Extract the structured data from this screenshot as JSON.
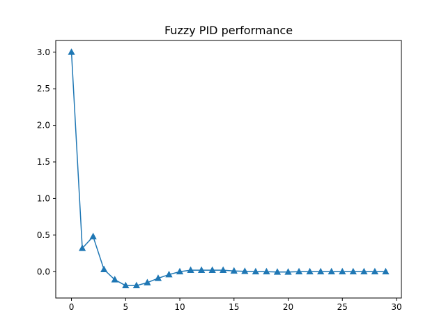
{
  "chart_data": {
    "type": "line",
    "title": "Fuzzy PID performance",
    "xlabel": "",
    "ylabel": "",
    "xlim": [
      -1.45,
      30.45
    ],
    "ylim": [
      -0.36,
      3.16
    ],
    "xticks": [
      0,
      5,
      10,
      15,
      20,
      25,
      30
    ],
    "yticks": [
      0.0,
      0.5,
      1.0,
      1.5,
      2.0,
      2.5,
      3.0
    ],
    "xtick_labels": [
      "0",
      "5",
      "10",
      "15",
      "20",
      "25",
      "30"
    ],
    "ytick_labels": [
      "0.0",
      "0.5",
      "1.0",
      "1.5",
      "2.0",
      "2.5",
      "3.0"
    ],
    "grid": false,
    "legend": "none",
    "series": [
      {
        "color": "#1f77b4",
        "marker": "triangle-up",
        "x": [
          0,
          1,
          2,
          3,
          4,
          5,
          6,
          7,
          8,
          9,
          10,
          11,
          12,
          13,
          14,
          15,
          16,
          17,
          18,
          19,
          20,
          21,
          22,
          23,
          24,
          25,
          26,
          27,
          28,
          29
        ],
        "y": [
          3.0,
          0.32,
          0.48,
          0.03,
          -0.11,
          -0.19,
          -0.19,
          -0.15,
          -0.09,
          -0.04,
          0.0,
          0.02,
          0.02,
          0.02,
          0.02,
          0.01,
          0.005,
          0.0,
          0.0,
          -0.005,
          -0.005,
          0.0,
          0.0,
          0.0,
          0.0,
          0.0,
          0.0,
          0.0,
          0.0,
          0.0
        ]
      }
    ]
  }
}
